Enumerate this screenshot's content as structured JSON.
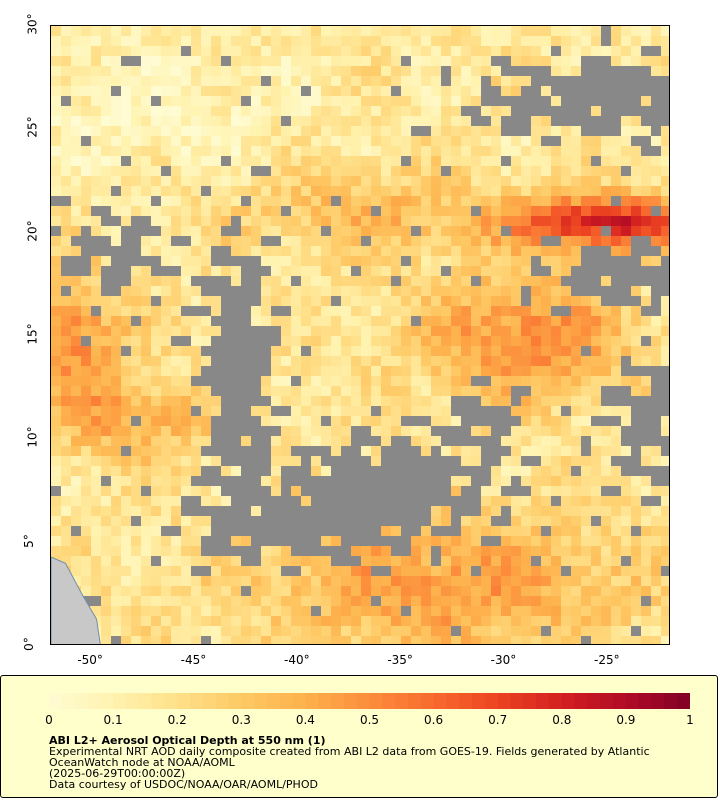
{
  "map": {
    "lon_range": [
      -52,
      -22
    ],
    "lat_range": [
      0,
      30
    ],
    "x_ticks": [
      {
        "value": -50,
        "label": "-50°"
      },
      {
        "value": -45,
        "label": "-45°"
      },
      {
        "value": -40,
        "label": "-40°"
      },
      {
        "value": -35,
        "label": "-35°"
      },
      {
        "value": -30,
        "label": "-30°"
      },
      {
        "value": -25,
        "label": "-25°"
      }
    ],
    "y_ticks": [
      {
        "value": 0,
        "label": "0°"
      },
      {
        "value": 5,
        "label": "5°"
      },
      {
        "value": 10,
        "label": "10°"
      },
      {
        "value": 15,
        "label": "15°"
      },
      {
        "value": 20,
        "label": "20°"
      },
      {
        "value": 25,
        "label": "25°"
      },
      {
        "value": 30,
        "label": "30°"
      }
    ],
    "colors": {
      "no_data": "#888888",
      "land": "#c8c8c8",
      "land_outline": "#6f8fb0"
    }
  },
  "colorbar": {
    "range": [
      0,
      1
    ],
    "tick_values": [
      0,
      0.1,
      0.2,
      0.3,
      0.4,
      0.5,
      0.6,
      0.7,
      0.8,
      0.9,
      1
    ],
    "tick_labels": [
      "0",
      "0.1",
      "0.2",
      "0.3",
      "0.4",
      "0.5",
      "0.6",
      "0.7",
      "0.8",
      "0.9",
      "1"
    ],
    "colors": [
      "#fffbd2",
      "#fff3b0",
      "#ffe08a",
      "#fec965",
      "#fdb04b",
      "#fc8d3c",
      "#f86a2e",
      "#ec4422",
      "#d21f20",
      "#b10b26",
      "#800026"
    ]
  },
  "caption": {
    "title": "ABI L2+ Aerosol Optical Depth at 550 nm (1)",
    "line1": "Experimental NRT AOD daily composite created from ABI L2 data from GOES-19. Fields generated by Atlantic",
    "line2": "OceanWatch node at NOAA/AOML",
    "line3": "(2025-06-29T00:00:00Z)",
    "line4": "Data courtesy of USDOC/NOAA/OAR/AOML/PHOD"
  }
}
